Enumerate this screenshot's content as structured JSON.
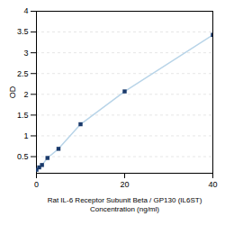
{
  "chart_data": {
    "type": "line",
    "xlabel": "Rat IL-6 Receptor Subunit Beta / GP130 (IL6ST)\nConcentration (ng/ml)",
    "ylabel": "OD",
    "x": [
      0,
      0.625,
      1.25,
      2.5,
      5,
      10,
      20,
      40
    ],
    "series": [
      {
        "type": "line",
        "color": "#b8d4e8",
        "values": [
          0.184,
          0.241,
          0.298,
          0.468,
          0.688,
          1.28,
          2.07,
          3.43
        ]
      },
      {
        "type": "scatter",
        "color": "#1a3a6b",
        "marker": "square",
        "values": [
          0.184,
          0.241,
          0.298,
          0.468,
          0.688,
          1.28,
          2.07,
          3.43
        ]
      }
    ],
    "xlim": [
      0,
      40
    ],
    "ylim": [
      0.1,
      4.0
    ],
    "xticks": [
      0,
      20,
      40
    ],
    "yticks": [
      0.5,
      1,
      1.5,
      2,
      2.5,
      3,
      3.5,
      4
    ],
    "grid": "y"
  }
}
